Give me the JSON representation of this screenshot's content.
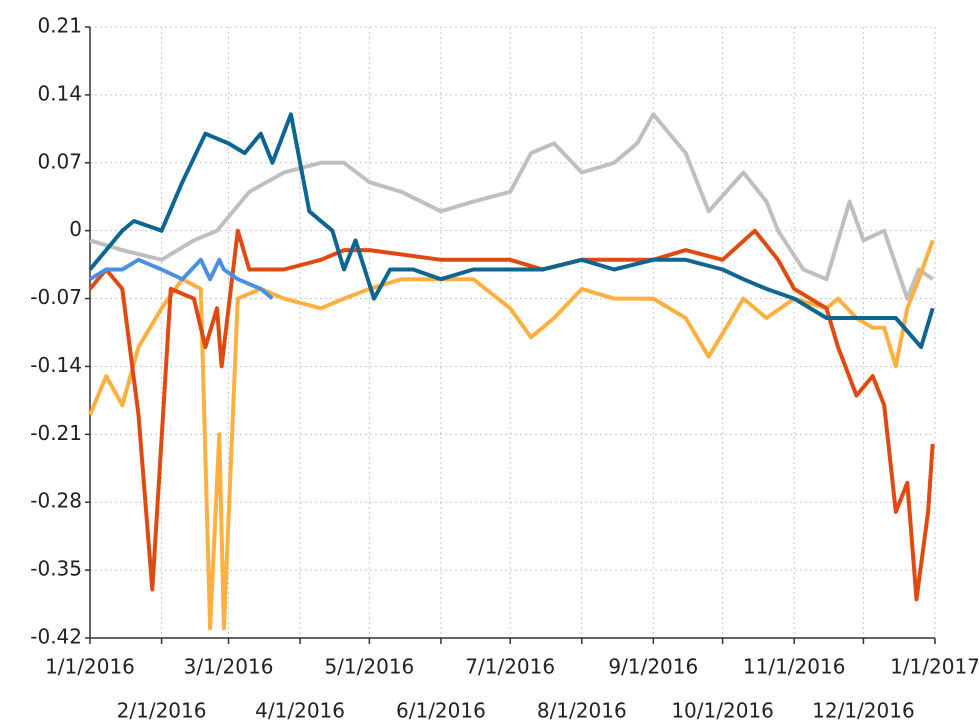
{
  "chart_data": {
    "type": "line",
    "xlim": [
      "1/1/2016",
      "1/1/2017"
    ],
    "xticks": [
      "1/1/2016",
      "2/1/2016",
      "3/1/2016",
      "4/1/2016",
      "5/1/2016",
      "6/1/2016",
      "7/1/2016",
      "8/1/2016",
      "9/1/2016",
      "10/1/2016",
      "11/1/2016",
      "12/1/2016",
      "1/1/2017"
    ],
    "ylim": [
      -0.42,
      0.21
    ],
    "yticks": [
      0.21,
      0.14,
      0.07,
      0,
      -0.07,
      -0.14,
      -0.21,
      -0.28,
      -0.35,
      -0.42
    ],
    "grid": true,
    "series": [
      {
        "color": "#bfbfbf",
        "x": [
          "1/1/2016",
          "1/15/2016",
          "2/1/2016",
          "2/15/2016",
          "2/25/2016",
          "3/10/2016",
          "3/25/2016",
          "4/10/2016",
          "4/20/2016",
          "5/1/2016",
          "5/15/2016",
          "6/1/2016",
          "6/15/2016",
          "7/1/2016",
          "7/10/2016",
          "7/20/2016",
          "8/1/2016",
          "8/15/2016",
          "8/25/2016",
          "9/1/2016",
          "9/15/2016",
          "9/25/2016",
          "10/10/2016",
          "10/20/2016",
          "10/25/2016",
          "11/5/2016",
          "11/15/2016",
          "11/25/2016",
          "12/1/2016",
          "12/10/2016",
          "12/20/2016",
          "12/25/2016",
          "12/31/2016"
        ],
        "values": [
          -0.01,
          -0.02,
          -0.03,
          -0.01,
          0.0,
          0.04,
          0.06,
          0.07,
          0.07,
          0.05,
          0.04,
          0.02,
          0.03,
          0.04,
          0.08,
          0.09,
          0.06,
          0.07,
          0.09,
          0.12,
          0.08,
          0.02,
          0.06,
          0.03,
          0.0,
          -0.04,
          -0.05,
          0.03,
          -0.01,
          0.0,
          -0.07,
          -0.04,
          -0.05
        ]
      },
      {
        "color": "#fbb040",
        "x": [
          "1/1/2016",
          "1/8/2016",
          "1/15/2016",
          "1/22/2016",
          "2/1/2016",
          "2/10/2016",
          "2/18/2016",
          "2/22/2016",
          "2/26/2016",
          "2/28/2016",
          "3/5/2016",
          "3/15/2016",
          "3/25/2016",
          "4/10/2016",
          "4/20/2016",
          "5/1/2016",
          "5/15/2016",
          "6/1/2016",
          "6/15/2016",
          "7/1/2016",
          "7/10/2016",
          "7/20/2016",
          "8/1/2016",
          "8/15/2016",
          "9/1/2016",
          "9/15/2016",
          "9/25/2016",
          "10/10/2016",
          "10/20/2016",
          "11/1/2016",
          "11/15/2016",
          "11/20/2016",
          "11/28/2016",
          "12/5/2016",
          "12/10/2016",
          "12/15/2016",
          "12/20/2016",
          "12/25/2016",
          "12/31/2016"
        ],
        "values": [
          -0.19,
          -0.15,
          -0.18,
          -0.12,
          -0.08,
          -0.05,
          -0.06,
          -0.41,
          -0.21,
          -0.41,
          -0.07,
          -0.06,
          -0.07,
          -0.08,
          -0.07,
          -0.06,
          -0.05,
          -0.05,
          -0.05,
          -0.08,
          -0.11,
          -0.09,
          -0.06,
          -0.07,
          -0.07,
          -0.09,
          -0.13,
          -0.07,
          -0.09,
          -0.07,
          -0.08,
          -0.07,
          -0.09,
          -0.1,
          -0.1,
          -0.14,
          -0.08,
          -0.05,
          -0.01
        ]
      },
      {
        "color": "#e0490f",
        "x": [
          "1/1/2016",
          "1/8/2016",
          "1/15/2016",
          "1/22/2016",
          "1/28/2016",
          "2/5/2016",
          "2/15/2016",
          "2/20/2016",
          "2/25/2016",
          "2/27/2016",
          "3/5/2016",
          "3/10/2016",
          "3/25/2016",
          "4/10/2016",
          "4/20/2016",
          "5/1/2016",
          "6/1/2016",
          "7/1/2016",
          "7/15/2016",
          "8/1/2016",
          "9/1/2016",
          "9/15/2016",
          "10/1/2016",
          "10/15/2016",
          "10/25/2016",
          "11/1/2016",
          "11/15/2016",
          "11/20/2016",
          "11/28/2016",
          "12/5/2016",
          "12/10/2016",
          "12/15/2016",
          "12/20/2016",
          "12/24/2016",
          "12/29/2016",
          "12/31/2016"
        ],
        "values": [
          -0.06,
          -0.04,
          -0.06,
          -0.19,
          -0.37,
          -0.06,
          -0.07,
          -0.12,
          -0.08,
          -0.14,
          0.0,
          -0.04,
          -0.04,
          -0.03,
          -0.02,
          -0.02,
          -0.03,
          -0.03,
          -0.04,
          -0.03,
          -0.03,
          -0.02,
          -0.03,
          0.0,
          -0.03,
          -0.06,
          -0.08,
          -0.12,
          -0.17,
          -0.15,
          -0.18,
          -0.29,
          -0.26,
          -0.38,
          -0.29,
          -0.22
        ]
      },
      {
        "color": "#4a90e2",
        "x": [
          "1/1/2016",
          "1/8/2016",
          "1/15/2016",
          "1/22/2016",
          "2/1/2016",
          "2/10/2016",
          "2/18/2016",
          "2/22/2016",
          "2/26/2016",
          "2/28/2016",
          "3/5/2016",
          "3/15/2016",
          "3/20/2016"
        ],
        "values": [
          -0.05,
          -0.04,
          -0.04,
          -0.03,
          -0.04,
          -0.05,
          -0.03,
          -0.05,
          -0.03,
          -0.04,
          -0.05,
          -0.06,
          -0.07
        ]
      },
      {
        "color": "#0e6591",
        "x": [
          "1/1/2016",
          "1/15/2016",
          "1/20/2016",
          "2/1/2016",
          "2/10/2016",
          "2/20/2016",
          "3/1/2016",
          "3/8/2016",
          "3/15/2016",
          "3/20/2016",
          "3/28/2016",
          "4/5/2016",
          "4/15/2016",
          "4/20/2016",
          "4/25/2016",
          "5/3/2016",
          "5/10/2016",
          "5/20/2016",
          "6/1/2016",
          "6/15/2016",
          "7/1/2016",
          "7/15/2016",
          "8/1/2016",
          "8/15/2016",
          "9/1/2016",
          "9/15/2016",
          "10/1/2016",
          "10/10/2016",
          "10/20/2016",
          "11/1/2016",
          "11/15/2016",
          "12/1/2016",
          "12/15/2016",
          "12/26/2016",
          "12/31/2016"
        ],
        "values": [
          -0.04,
          0.0,
          0.01,
          0.0,
          0.05,
          0.1,
          0.09,
          0.08,
          0.1,
          0.07,
          0.12,
          0.02,
          0.0,
          -0.04,
          -0.01,
          -0.07,
          -0.04,
          -0.04,
          -0.05,
          -0.04,
          -0.04,
          -0.04,
          -0.03,
          -0.04,
          -0.03,
          -0.03,
          -0.04,
          -0.05,
          -0.06,
          -0.07,
          -0.09,
          -0.09,
          -0.09,
          -0.12,
          -0.08
        ]
      }
    ]
  }
}
